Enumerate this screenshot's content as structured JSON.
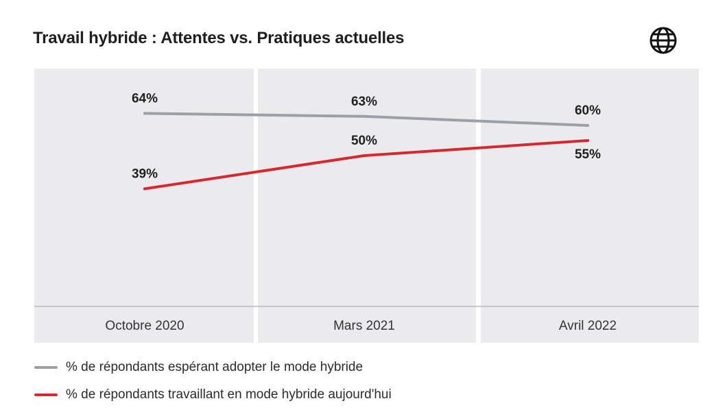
{
  "chart_data": {
    "type": "line",
    "title": "Travail hybride : Attentes vs. Pratiques actuelles",
    "categories": [
      "Octobre 2020",
      "Mars 2021",
      "Avril 2022"
    ],
    "series": [
      {
        "name": "% de répondants espérant adopter le mode hybride",
        "values": [
          64,
          63,
          60
        ],
        "labels": [
          "64%",
          "63%",
          "60%"
        ],
        "color": "#9aa0a6"
      },
      {
        "name": "% de répondants travaillant en mode hybride aujourd'hui",
        "values": [
          39,
          50,
          55
        ],
        "labels": [
          "39%",
          "50%",
          "55%"
        ],
        "color": "#d7282f"
      }
    ],
    "ylim": [
      0,
      80
    ],
    "grid": false,
    "legend": "bottom-left",
    "xlabel": "",
    "ylabel": ""
  },
  "icon": "globe-icon",
  "colors": {
    "panel": "#ebebee",
    "axis": "#b9b9be",
    "label": "#1f1f1f"
  }
}
